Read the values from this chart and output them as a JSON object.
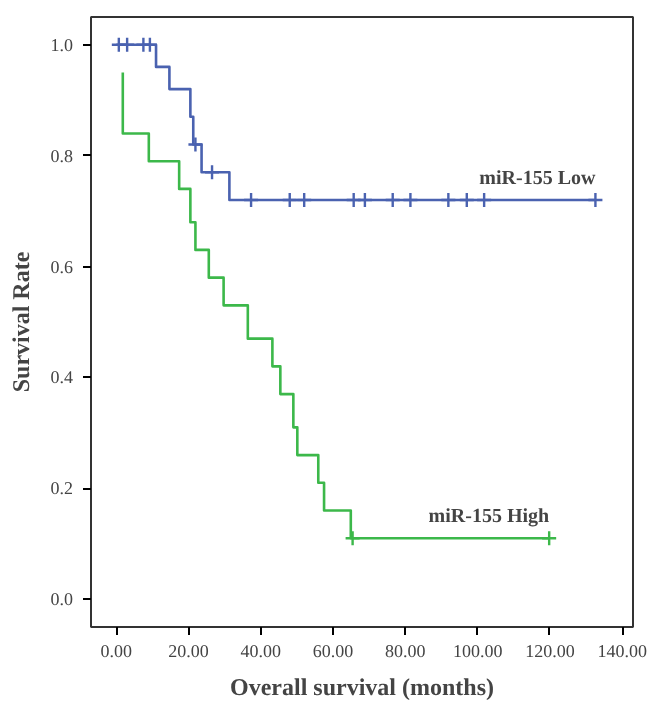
{
  "chart_data": {
    "type": "step",
    "xlabel": "Overall survival (months)",
    "ylabel": "Survival Rate",
    "xlim": [
      -7,
      143
    ],
    "ylim": [
      -0.05,
      1.05
    ],
    "xticks": [
      {
        "value": 0,
        "label": "0.00"
      },
      {
        "value": 20,
        "label": "20.00"
      },
      {
        "value": 40,
        "label": "40.00"
      },
      {
        "value": 60,
        "label": "60.00"
      },
      {
        "value": 80,
        "label": "80.00"
      },
      {
        "value": 100,
        "label": "100.00"
      },
      {
        "value": 120,
        "label": "120.00"
      },
      {
        "value": 140,
        "label": "140.00"
      }
    ],
    "yticks": [
      {
        "value": 0,
        "label": "0.0"
      },
      {
        "value": 0.2,
        "label": "0.2"
      },
      {
        "value": 0.4,
        "label": "0.4"
      },
      {
        "value": 0.6,
        "label": "0.6"
      },
      {
        "value": 0.8,
        "label": "0.8"
      },
      {
        "value": 1.0,
        "label": "1.0"
      }
    ],
    "grid": false,
    "series": [
      {
        "name": "miR-155 Low",
        "color": "#4a62b0",
        "x": [
          0,
          11,
          14.7,
          20.5,
          21.3,
          23.6,
          31.3,
          132.6
        ],
        "values": [
          1.0,
          0.96,
          0.92,
          0.87,
          0.82,
          0.77,
          0.72,
          0.72
        ]
      },
      {
        "name": "miR-155 High",
        "color": "#3cb84a",
        "x": [
          1.8,
          1.8,
          9,
          17.4,
          20.5,
          21.9,
          25.6,
          29.7,
          36.4,
          43.2,
          45.4,
          49,
          50.1,
          55.9,
          57.5,
          64.9,
          119.8
        ],
        "values": [
          0.95,
          0.84,
          0.79,
          0.74,
          0.68,
          0.63,
          0.58,
          0.53,
          0.47,
          0.42,
          0.37,
          0.31,
          0.26,
          0.21,
          0.16,
          0.11,
          0.11
        ]
      },
      {
        "type": "scatter",
        "marker": "cross",
        "color": "#4a62b0",
        "x": [
          0.7,
          3,
          7.5,
          9.3,
          21.9,
          26.5,
          37.3,
          48,
          52,
          65.7,
          68.8,
          76.5,
          81.4,
          91.9,
          97,
          101.8,
          132.6
        ],
        "values": [
          1.0,
          1.0,
          1.0,
          1.0,
          0.82,
          0.77,
          0.72,
          0.72,
          0.72,
          0.72,
          0.72,
          0.72,
          0.72,
          0.72,
          0.72,
          0.72,
          0.72
        ]
      },
      {
        "type": "scatter",
        "marker": "cross",
        "color": "#3cb84a",
        "x": [
          65.4,
          119.8
        ],
        "values": [
          0.11,
          0.11
        ]
      }
    ]
  }
}
